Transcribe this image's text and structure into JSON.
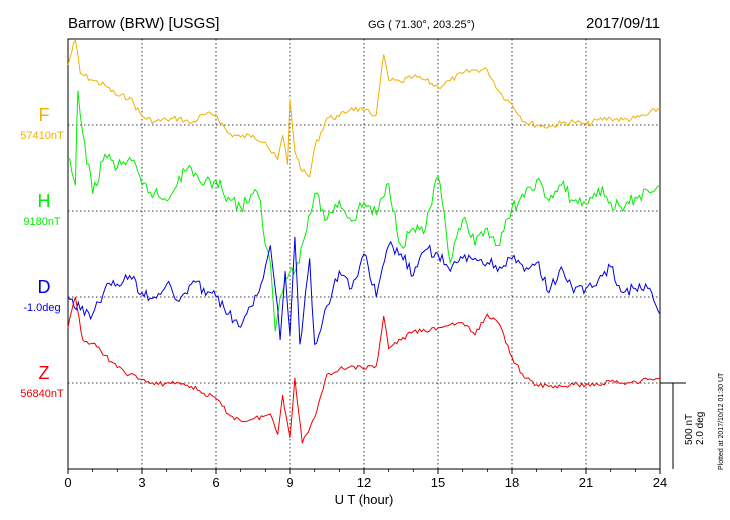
{
  "header": {
    "station": "Barrow (BRW)  [USGS]",
    "coords": "GG ( 71.30°, 203.25°)",
    "date": "2017/09/11"
  },
  "xaxis": {
    "label": "U T (hour)",
    "ticks": [
      "0",
      "3",
      "6",
      "9",
      "12",
      "15",
      "18",
      "21",
      "24"
    ]
  },
  "scale": {
    "nt": "500 nT",
    "deg": "2.0 deg"
  },
  "plotted": "Plotted at 2017/10/12 01:30 UT",
  "colors": {
    "F": "#f0b000",
    "H": "#00ee00",
    "D": "#0000dd",
    "Z": "#ee0000"
  },
  "chart_data": {
    "type": "line",
    "x_unit": "hour UT",
    "xlim": [
      0,
      24
    ],
    "series": [
      {
        "name": "F",
        "baseline_label": "57410nT",
        "color": "#f0b000",
        "x": [
          0,
          0.3,
          0.5,
          1,
          1.5,
          2,
          2.5,
          3,
          3.5,
          4,
          4.5,
          5,
          5.5,
          6,
          6.5,
          7,
          7.5,
          8,
          8.2,
          8.5,
          8.7,
          8.9,
          9,
          9.2,
          9.5,
          9.8,
          10,
          10.5,
          11,
          11.5,
          12,
          12.5,
          12.8,
          13,
          13.5,
          14,
          14.5,
          15,
          15.5,
          16,
          16.5,
          17,
          17.5,
          18,
          18.5,
          19,
          19.5,
          20,
          20.5,
          21,
          21.5,
          22,
          22.5,
          23,
          23.5,
          24
        ],
        "values": [
          350,
          500,
          300,
          260,
          230,
          170,
          160,
          50,
          20,
          30,
          40,
          10,
          60,
          60,
          -50,
          -70,
          -60,
          -100,
          -150,
          -200,
          -60,
          -230,
          150,
          -150,
          -270,
          -300,
          -130,
          40,
          50,
          100,
          80,
          60,
          410,
          260,
          250,
          280,
          260,
          220,
          260,
          300,
          320,
          320,
          190,
          120,
          20,
          0,
          -10,
          10,
          20,
          0,
          30,
          40,
          30,
          40,
          60,
          100
        ]
      },
      {
        "name": "H",
        "baseline_label": "9180nT",
        "color": "#00ee00",
        "x": [
          0,
          0.3,
          0.4,
          0.6,
          1,
          1.5,
          2,
          2.5,
          3,
          3.5,
          4,
          4.5,
          5,
          5.5,
          6,
          6.5,
          7,
          7.5,
          7.8,
          8,
          8.2,
          8.4,
          8.6,
          8.8,
          9,
          9.3,
          9.6,
          10,
          10.5,
          11,
          11.5,
          12,
          12.5,
          13,
          13.5,
          14,
          14.5,
          15,
          15.5,
          16,
          16.5,
          17,
          17.5,
          18,
          18.5,
          19,
          19.5,
          20,
          20.5,
          21,
          21.5,
          22,
          22.5,
          23,
          23.5,
          24
        ],
        "values": [
          300,
          150,
          700,
          450,
          100,
          330,
          250,
          310,
          150,
          100,
          60,
          200,
          250,
          150,
          180,
          80,
          20,
          100,
          60,
          -200,
          -300,
          -700,
          -500,
          -400,
          -350,
          -300,
          -150,
          100,
          -50,
          60,
          -60,
          50,
          -20,
          160,
          -200,
          -100,
          -100,
          200,
          -300,
          -50,
          -200,
          -100,
          -200,
          20,
          80,
          180,
          60,
          150,
          60,
          40,
          130,
          50,
          0,
          80,
          120,
          150
        ]
      },
      {
        "name": "D",
        "baseline_label": "-1.0deg",
        "color": "#0000dd",
        "x": [
          0,
          0.5,
          1,
          1.5,
          2,
          2.5,
          3,
          3.5,
          4,
          4.5,
          5,
          5.5,
          6,
          6.5,
          7,
          7.5,
          8,
          8.2,
          8.4,
          8.6,
          8.8,
          9,
          9.2,
          9.4,
          9.8,
          10,
          10.5,
          11,
          11.5,
          12,
          12.5,
          13,
          13.5,
          14,
          14.5,
          15,
          15.5,
          16,
          16.5,
          17,
          17.5,
          18,
          18.5,
          19,
          19.5,
          20,
          20.5,
          21,
          21.5,
          22,
          22.5,
          23,
          23.5,
          24
        ],
        "values": [
          0,
          -0.3,
          -0.4,
          0.2,
          0.3,
          0.5,
          0.1,
          0,
          0.3,
          -0.1,
          0.3,
          0.2,
          0,
          -0.4,
          -0.7,
          -0.2,
          0.7,
          1.2,
          0.2,
          -1.0,
          0.6,
          -0.9,
          1.4,
          -1.1,
          0.9,
          -1.1,
          -0.2,
          0.6,
          0.2,
          1.0,
          0,
          1.2,
          1.0,
          0.5,
          1.1,
          1.0,
          0.6,
          0.9,
          0.9,
          0.8,
          0.7,
          0.9,
          0.6,
          0.8,
          0.1,
          0.7,
          0.1,
          0.2,
          0.4,
          0.7,
          0.1,
          0.2,
          0.2,
          -0.4
        ]
      },
      {
        "name": "Z",
        "baseline_label": "56840nT",
        "color": "#ee0000",
        "x": [
          0,
          0.3,
          0.6,
          1,
          1.5,
          2,
          2.5,
          3,
          3.5,
          4,
          4.5,
          5,
          5.5,
          6,
          6.5,
          7,
          7.5,
          8,
          8.2,
          8.5,
          8.7,
          9,
          9.2,
          9.5,
          10,
          10.5,
          11,
          11.5,
          12,
          12.5,
          12.8,
          13,
          13.5,
          14,
          14.5,
          15,
          15.5,
          16,
          16.5,
          17,
          17.5,
          18,
          18.5,
          19,
          19.5,
          20,
          20.5,
          21,
          21.5,
          22,
          22.5,
          23,
          23.5,
          24
        ],
        "values": [
          320,
          500,
          250,
          230,
          160,
          90,
          50,
          20,
          -10,
          0,
          0,
          -20,
          -60,
          -90,
          -180,
          -220,
          -210,
          -190,
          -180,
          -300,
          -70,
          -320,
          30,
          -350,
          -200,
          50,
          80,
          100,
          80,
          100,
          390,
          200,
          250,
          300,
          300,
          320,
          340,
          350,
          280,
          400,
          340,
          150,
          30,
          -10,
          -20,
          -20,
          -10,
          -10,
          -10,
          10,
          0,
          10,
          20,
          30
        ]
      }
    ],
    "scale_bar": {
      "nT": 500,
      "deg": 2.0
    }
  }
}
